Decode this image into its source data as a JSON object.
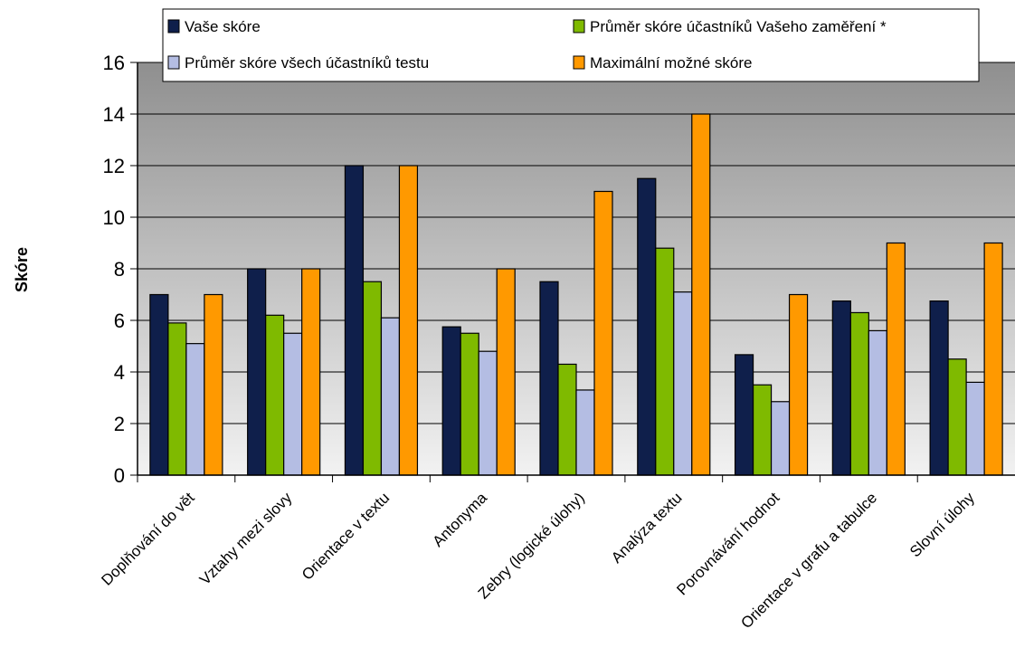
{
  "chart_data": {
    "type": "bar",
    "title": "",
    "xlabel": "",
    "ylabel": "Skóre",
    "ylim": [
      0,
      16
    ],
    "yticks": [
      0,
      2,
      4,
      6,
      8,
      10,
      12,
      14,
      16
    ],
    "grid": true,
    "legend_position": "top",
    "background": "gray-gradient",
    "categories": [
      "Doplňování do vět",
      "Vztahy mezi slovy",
      "Orientace v textu",
      "Antonyma",
      "Zebry (logické úlohy)",
      "Analýza textu",
      "Porovnávání hodnot",
      "Orientace v grafu a tabulce",
      "Slovní úlohy"
    ],
    "series": [
      {
        "name": "Vaše skóre",
        "color": "#0f1f4b",
        "values": [
          7,
          8,
          12,
          5.75,
          7.5,
          11.5,
          4.67,
          6.75,
          6.75
        ]
      },
      {
        "name": "Průměr skóre účastníků Vašeho zaměření *",
        "color": "#7fba00",
        "values": [
          5.9,
          6.2,
          7.5,
          5.5,
          4.3,
          8.8,
          3.5,
          6.3,
          4.5
        ]
      },
      {
        "name": "Průměr skóre všech účastníků testu",
        "color": "#b4bde3",
        "values": [
          5.1,
          5.5,
          6.1,
          4.8,
          3.3,
          7.1,
          2.85,
          5.6,
          3.6
        ]
      },
      {
        "name": "Maximální možné skóre",
        "color": "#ff9900",
        "values": [
          7,
          8,
          12,
          8,
          11,
          14,
          7,
          9,
          9
        ]
      }
    ]
  }
}
